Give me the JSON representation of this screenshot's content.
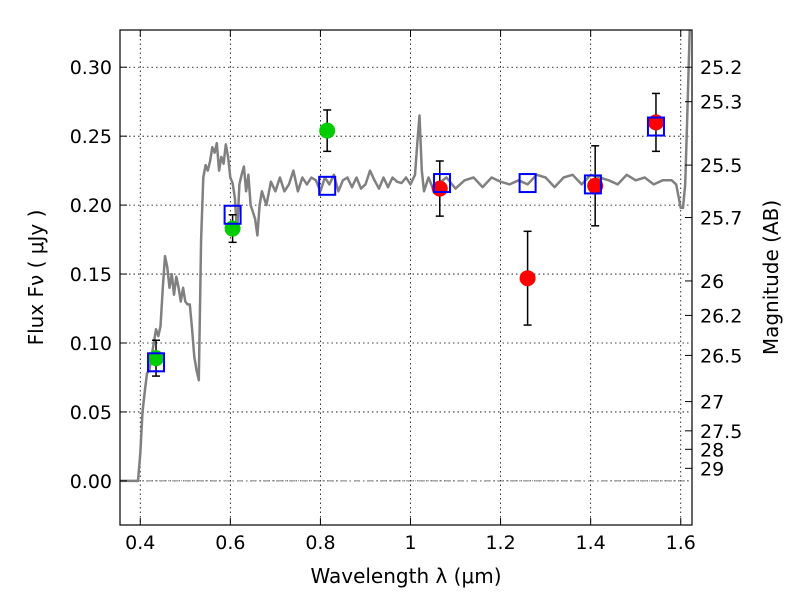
{
  "chart_data": {
    "type": "scatter",
    "xlabel": "Wavelength  λ (μm)",
    "ylabel": "Flux  Fν  ( μJy )",
    "y2label": "Magnitude (AB)",
    "xlim": [
      0.355,
      1.625
    ],
    "ylim": [
      -0.032,
      0.327
    ],
    "grid": true,
    "x_ticks": [
      "0.4",
      "0.6",
      "0.8",
      "1",
      "1.2",
      "1.4",
      "1.6"
    ],
    "x_tick_values": [
      0.4,
      0.6,
      0.8,
      1.0,
      1.2,
      1.4,
      1.6
    ],
    "y_ticks": [
      "0.00",
      "0.05",
      "0.10",
      "0.15",
      "0.20",
      "0.25",
      "0.30"
    ],
    "y_tick_values": [
      0.0,
      0.05,
      0.1,
      0.15,
      0.2,
      0.25,
      0.3
    ],
    "y2_ticks": [
      {
        "label": "25.2",
        "flux": 0.3
      },
      {
        "label": "25.3",
        "flux": 0.275
      },
      {
        "label": "25.5",
        "flux": 0.229
      },
      {
        "label": "25.7",
        "flux": 0.191
      },
      {
        "label": "26",
        "flux": 0.145
      },
      {
        "label": "26.2",
        "flux": 0.12
      },
      {
        "label": "26.5",
        "flux": 0.091
      },
      {
        "label": "27",
        "flux": 0.0575
      },
      {
        "label": "27.5",
        "flux": 0.0363
      },
      {
        "label": "28",
        "flux": 0.0229
      },
      {
        "label": "29",
        "flux": 0.0091
      }
    ],
    "series": [
      {
        "type": "line",
        "color": "#808080",
        "x": [
          0.355,
          0.38,
          0.395,
          0.4,
          0.405,
          0.41,
          0.415,
          0.42,
          0.425,
          0.43,
          0.435,
          0.44,
          0.445,
          0.45,
          0.455,
          0.46,
          0.465,
          0.47,
          0.475,
          0.48,
          0.485,
          0.49,
          0.495,
          0.5,
          0.505,
          0.51,
          0.515,
          0.52,
          0.525,
          0.53,
          0.535,
          0.54,
          0.545,
          0.55,
          0.555,
          0.56,
          0.565,
          0.57,
          0.575,
          0.58,
          0.585,
          0.59,
          0.595,
          0.6,
          0.605,
          0.61,
          0.615,
          0.62,
          0.625,
          0.63,
          0.635,
          0.64,
          0.645,
          0.65,
          0.655,
          0.66,
          0.665,
          0.67,
          0.68,
          0.69,
          0.7,
          0.71,
          0.72,
          0.73,
          0.74,
          0.75,
          0.76,
          0.77,
          0.78,
          0.79,
          0.8,
          0.81,
          0.82,
          0.83,
          0.84,
          0.85,
          0.86,
          0.87,
          0.88,
          0.89,
          0.9,
          0.91,
          0.92,
          0.93,
          0.94,
          0.95,
          0.96,
          0.97,
          0.98,
          0.99,
          1.0,
          1.01,
          1.015,
          1.02,
          1.025,
          1.03,
          1.04,
          1.05,
          1.06,
          1.08,
          1.1,
          1.12,
          1.14,
          1.16,
          1.18,
          1.2,
          1.22,
          1.24,
          1.26,
          1.28,
          1.3,
          1.32,
          1.34,
          1.36,
          1.38,
          1.4,
          1.42,
          1.44,
          1.46,
          1.48,
          1.5,
          1.52,
          1.54,
          1.56,
          1.58,
          1.59,
          1.6,
          1.605,
          1.61,
          1.615,
          1.62
        ],
        "y": [
          0.0,
          0.0,
          0.0,
          0.02,
          0.05,
          0.065,
          0.078,
          0.08,
          0.09,
          0.1,
          0.11,
          0.105,
          0.112,
          0.14,
          0.163,
          0.155,
          0.14,
          0.15,
          0.135,
          0.148,
          0.14,
          0.13,
          0.14,
          0.13,
          0.128,
          0.128,
          0.11,
          0.09,
          0.08,
          0.073,
          0.175,
          0.22,
          0.229,
          0.225,
          0.232,
          0.242,
          0.238,
          0.245,
          0.225,
          0.235,
          0.23,
          0.244,
          0.235,
          0.22,
          0.216,
          0.205,
          0.18,
          0.215,
          0.222,
          0.228,
          0.21,
          0.222,
          0.2,
          0.195,
          0.19,
          0.178,
          0.2,
          0.21,
          0.2,
          0.217,
          0.21,
          0.22,
          0.21,
          0.215,
          0.225,
          0.21,
          0.22,
          0.215,
          0.22,
          0.218,
          0.21,
          0.22,
          0.215,
          0.222,
          0.21,
          0.218,
          0.22,
          0.213,
          0.22,
          0.212,
          0.215,
          0.225,
          0.218,
          0.212,
          0.22,
          0.213,
          0.22,
          0.217,
          0.216,
          0.22,
          0.215,
          0.222,
          0.245,
          0.265,
          0.225,
          0.21,
          0.22,
          0.212,
          0.215,
          0.22,
          0.212,
          0.218,
          0.22,
          0.213,
          0.22,
          0.217,
          0.215,
          0.218,
          0.215,
          0.222,
          0.22,
          0.213,
          0.22,
          0.222,
          0.215,
          0.222,
          0.22,
          0.218,
          0.215,
          0.222,
          0.218,
          0.22,
          0.215,
          0.218,
          0.218,
          0.215,
          0.198,
          0.198,
          0.215,
          0.27,
          0.33
        ]
      },
      {
        "type": "errorbar_points",
        "color": "#00cc00",
        "x": [
          0.435,
          0.605,
          0.815
        ],
        "y": [
          0.089,
          0.183,
          0.254
        ],
        "yerr": [
          0.013,
          0.01,
          0.015
        ]
      },
      {
        "type": "errorbar_points",
        "color": "#ff0000",
        "x": [
          1.065,
          1.26,
          1.41,
          1.545
        ],
        "y": [
          0.212,
          0.147,
          0.214,
          0.26
        ],
        "yerr": [
          0.02,
          0.034,
          0.029,
          0.021
        ]
      },
      {
        "type": "open_squares",
        "color": "#0000ff",
        "x": [
          0.435,
          0.605,
          0.815,
          1.07,
          1.26,
          1.405,
          1.545
        ],
        "y": [
          0.086,
          0.193,
          0.214,
          0.216,
          0.216,
          0.215,
          0.257
        ]
      }
    ]
  }
}
